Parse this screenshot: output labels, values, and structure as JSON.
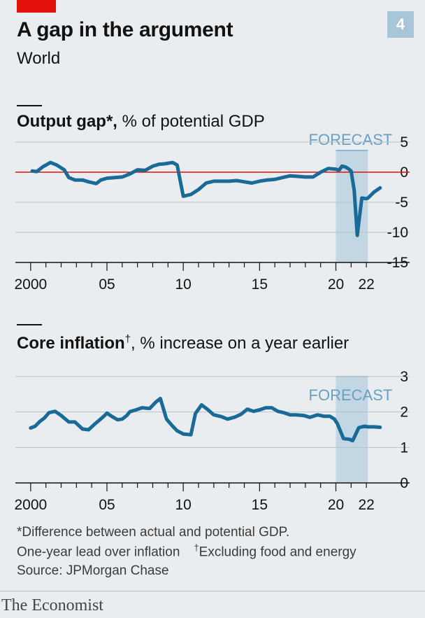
{
  "header": {
    "title": "A gap in the argument",
    "subtitle": "World",
    "chart_number": "4"
  },
  "panels": {
    "output": {
      "bold": "Output gap*,",
      "rest": " % of potential GDP"
    },
    "inflation": {
      "bold": "Core inflation",
      "mark": "†",
      "rest": ", % increase on a year earlier"
    }
  },
  "footnotes": {
    "line1": "*Difference between actual and potential GDP.",
    "line2a": "One-year lead over inflation",
    "line2b_mark": "†",
    "line2b": "Excluding food and energy",
    "source": "Source: JPMorgan Chase"
  },
  "brand": "The Economist",
  "colors": {
    "line": "#1a6a98",
    "forecast": "#c2d6e4",
    "zero_line": "#e3120b",
    "grid": "#b9c2c8"
  },
  "chart_data": [
    {
      "type": "line",
      "xlim": [
        1999,
        2023
      ],
      "ylim": [
        -15,
        5
      ],
      "yticks": [
        5,
        0,
        -5,
        -10,
        -15
      ],
      "ytick_labels": [
        "5",
        "0",
        "-5",
        "-10",
        "-15"
      ],
      "xticks": [
        2000,
        2005,
        2010,
        2015,
        2020,
        2022
      ],
      "xtick_labels": [
        "2000",
        "05",
        "10",
        "15",
        "20",
        "22"
      ],
      "zero_line": true,
      "forecast": {
        "label": "FORECAST",
        "from": 2020,
        "to": 2022.1
      },
      "series": [
        {
          "x": [
            2000.1,
            2000.4,
            2000.8,
            2001.3,
            2001.7,
            2002.2,
            2002.5,
            2002.9,
            2003.4,
            2003.8,
            2004.3,
            2004.6,
            2005.0,
            2005.5,
            2006.0,
            2006.5,
            2007.0,
            2007.5,
            2008.0,
            2008.4,
            2008.8,
            2009.3,
            2009.6,
            2010.0,
            2010.5,
            2011.0,
            2011.5,
            2012.0,
            2012.5,
            2013.0,
            2013.5,
            2014.0,
            2014.5,
            2015.0,
            2015.5,
            2016.0,
            2016.5,
            2017.0,
            2017.5,
            2018.0,
            2018.5,
            2019.0,
            2019.5,
            2020.0,
            2020.2,
            2020.4,
            2020.6,
            2020.8,
            2021.0,
            2021.2,
            2021.4,
            2021.7,
            2022.0,
            2022.1
          ],
          "y": [
            0.2,
            0.1,
            0.9,
            1.6,
            1.2,
            0.4,
            -0.9,
            -1.3,
            -1.3,
            -1.6,
            -1.9,
            -1.3,
            -1.0,
            -0.9,
            -0.8,
            -0.3,
            0.4,
            0.3,
            1.0,
            1.3,
            1.4,
            1.6,
            1.2,
            -4.0,
            -3.7,
            -2.9,
            -1.8,
            -1.5,
            -1.5,
            -1.5,
            -1.4,
            -1.6,
            -1.8,
            -1.5,
            -1.3,
            -1.2,
            -0.9,
            -0.6,
            -0.7,
            -0.8,
            -0.8,
            0.0,
            0.6,
            0.5,
            0.3,
            1.0,
            0.9,
            0.6,
            0.2,
            -3.0,
            -10.5,
            -4.3,
            -4.4,
            -4.3
          ]
        },
        {
          "x": [
            2022.1,
            2022.5,
            2022.9
          ],
          "y": [
            -4.3,
            -3.3,
            -2.6
          ]
        }
      ]
    },
    {
      "type": "line",
      "xlim": [
        1999,
        2023
      ],
      "ylim": [
        0,
        3
      ],
      "yticks": [
        3,
        2,
        1,
        0
      ],
      "ytick_labels": [
        "3",
        "2",
        "1",
        "0"
      ],
      "xticks": [
        2000,
        2005,
        2010,
        2015,
        2020,
        2022
      ],
      "xtick_labels": [
        "2000",
        "05",
        "10",
        "15",
        "20",
        "22"
      ],
      "forecast": {
        "label": "FORECAST",
        "from": 2020,
        "to": 2022.1
      },
      "series": [
        {
          "x": [
            2000.0,
            2000.3,
            2000.6,
            2000.9,
            2001.2,
            2001.6,
            2002.0,
            2002.5,
            2002.9,
            2003.4,
            2003.8,
            2004.2,
            2004.5,
            2004.8,
            2005.0,
            2005.3,
            2005.7,
            2006.0,
            2006.3,
            2006.5,
            2006.9,
            2007.3,
            2007.8,
            2008.2,
            2008.5,
            2008.9,
            2009.3,
            2009.6,
            2010.0,
            2010.5,
            2010.8,
            2011.2,
            2011.6,
            2012.0,
            2012.5,
            2012.9,
            2013.4,
            2013.8,
            2014.2,
            2014.6,
            2015.0,
            2015.4,
            2015.8,
            2016.2,
            2016.6,
            2017.0,
            2017.4,
            2017.9,
            2018.3,
            2018.8,
            2019.2,
            2019.6,
            2019.9,
            2020.1,
            2020.5,
            2020.9,
            2021.1,
            2021.5,
            2021.9,
            2022.1
          ],
          "y": [
            1.55,
            1.6,
            1.73,
            1.83,
            1.98,
            2.02,
            1.9,
            1.72,
            1.72,
            1.52,
            1.5,
            1.66,
            1.77,
            1.88,
            1.97,
            1.88,
            1.78,
            1.8,
            1.9,
            2.01,
            2.06,
            2.12,
            2.1,
            2.28,
            2.38,
            1.8,
            1.6,
            1.47,
            1.38,
            1.36,
            1.96,
            2.2,
            2.07,
            1.92,
            1.87,
            1.8,
            1.86,
            1.94,
            2.08,
            2.02,
            2.06,
            2.12,
            2.12,
            2.02,
            1.98,
            1.92,
            1.92,
            1.9,
            1.85,
            1.92,
            1.88,
            1.88,
            1.8,
            1.67,
            1.25,
            1.23,
            1.19,
            1.56,
            1.6,
            1.58
          ]
        },
        {
          "x": [
            2022.1,
            2022.5,
            2022.9
          ],
          "y": [
            1.58,
            1.58,
            1.57
          ]
        }
      ]
    }
  ]
}
